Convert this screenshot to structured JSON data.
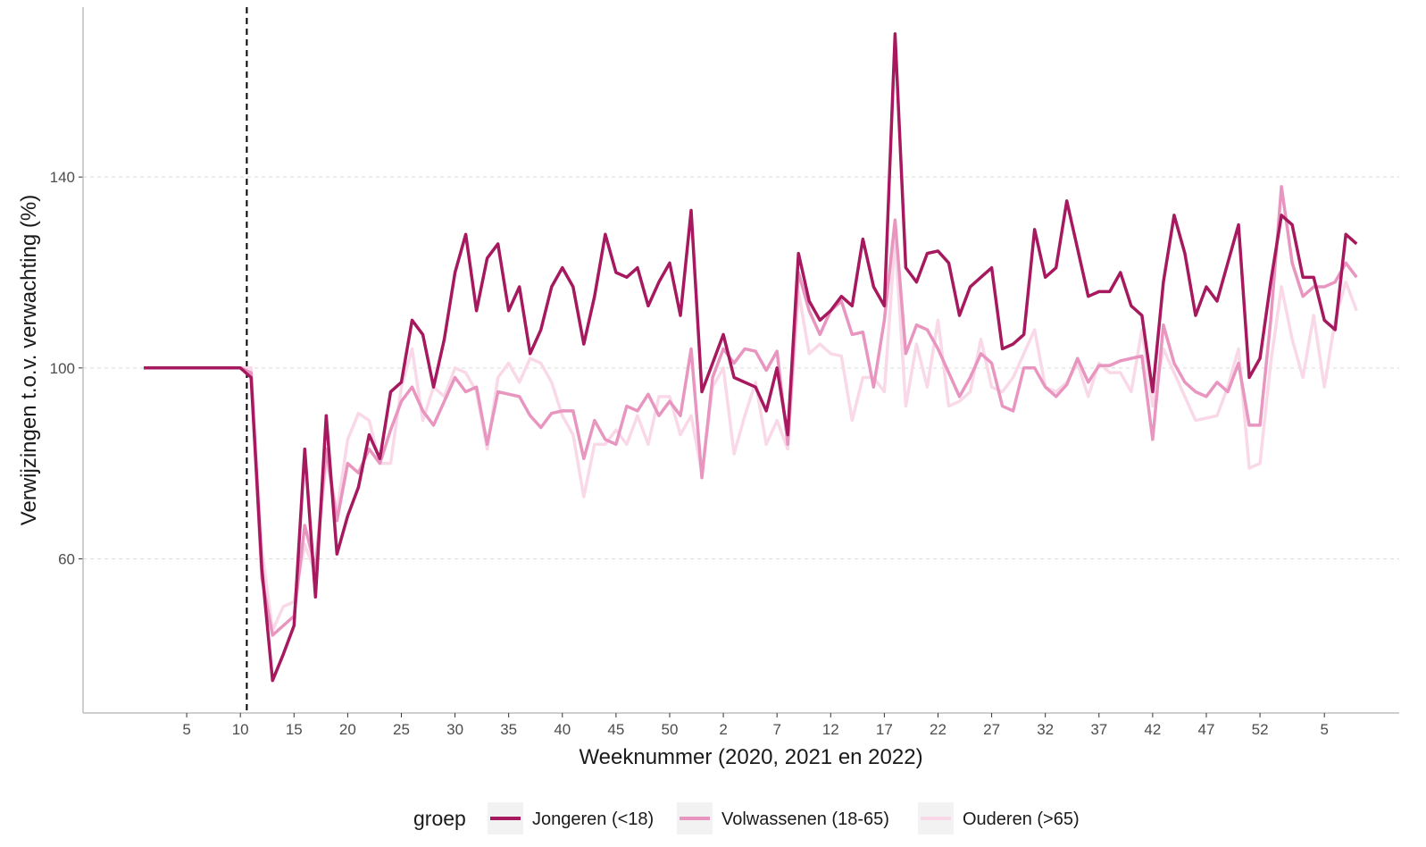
{
  "chart_data": {
    "type": "line",
    "x_label": "Weeknummer (2020, 2021 en 2022)",
    "y_label": "Verwijzingen t.o.v. verwachting (%)",
    "legend_title": "groep",
    "categories": [
      null,
      null,
      null,
      null,
      "5",
      null,
      null,
      null,
      null,
      "10",
      null,
      null,
      null,
      null,
      "15",
      null,
      null,
      null,
      null,
      "20",
      null,
      null,
      null,
      null,
      "25",
      null,
      null,
      null,
      null,
      "30",
      null,
      null,
      null,
      null,
      "35",
      null,
      null,
      null,
      null,
      "40",
      null,
      null,
      null,
      null,
      "45",
      null,
      null,
      null,
      null,
      "50",
      null,
      null,
      null,
      null,
      "2",
      null,
      null,
      null,
      null,
      "7",
      null,
      null,
      null,
      null,
      "12",
      null,
      null,
      null,
      null,
      "17",
      null,
      null,
      null,
      null,
      "22",
      null,
      null,
      null,
      null,
      "27",
      null,
      null,
      null,
      null,
      "32",
      null,
      null,
      null,
      null,
      "37",
      null,
      null,
      null,
      null,
      "42",
      null,
      null,
      null,
      null,
      "47",
      null,
      null,
      null,
      null,
      "52",
      null,
      null,
      null,
      null,
      null,
      "5",
      null,
      null,
      null
    ],
    "series": [
      {
        "name": "Jongeren (<18)",
        "color": "#a6195f",
        "values": [
          100,
          100,
          100,
          100,
          100,
          100,
          100,
          100,
          100,
          100,
          98,
          58,
          34.5,
          40,
          46,
          83,
          52,
          90,
          61,
          69,
          75,
          86,
          81,
          95,
          97,
          110,
          107,
          96,
          106,
          120,
          128,
          112,
          123,
          126,
          112,
          117,
          103,
          108,
          117,
          121,
          117,
          105,
          115,
          128,
          120,
          119,
          121,
          113,
          118,
          122,
          111,
          133,
          95,
          101,
          107,
          98,
          97,
          96,
          91,
          100,
          86,
          124,
          114,
          110,
          112,
          115,
          113,
          127,
          117,
          113,
          170,
          121,
          118,
          124,
          124.5,
          122,
          111,
          117,
          119,
          121,
          104,
          105,
          107,
          129,
          119,
          121,
          135,
          125,
          115,
          116,
          116,
          120,
          113,
          111,
          95,
          118,
          132,
          124,
          111,
          117,
          114,
          122,
          130,
          98,
          102,
          118,
          132,
          130,
          119,
          119,
          110,
          108,
          128,
          126
        ]
      },
      {
        "name": "Volwassenen (18-65)",
        "color": "#e895c0",
        "values": [
          100,
          100,
          100,
          100,
          100,
          100,
          100,
          100,
          100,
          100,
          99,
          56,
          44,
          46,
          48,
          67,
          58,
          83,
          68,
          80,
          78,
          83,
          80,
          87,
          93,
          96,
          91,
          88,
          93,
          98,
          95,
          96,
          84,
          95,
          94.5,
          94,
          90,
          87.5,
          90.5,
          91,
          91,
          81,
          89,
          85,
          84,
          92,
          91,
          94.5,
          90,
          93,
          90,
          104,
          77,
          98,
          104,
          101,
          104,
          103.5,
          99.5,
          103.5,
          84,
          120,
          112,
          107,
          112,
          114,
          107,
          107.5,
          96,
          110,
          131,
          103,
          109,
          108,
          104,
          99,
          94,
          98,
          103,
          101,
          92,
          91,
          100,
          100,
          96,
          94,
          96.5,
          102,
          97,
          100.5,
          100.5,
          101.5,
          102,
          102.5,
          85,
          109,
          101,
          97,
          95,
          94,
          97,
          95,
          101,
          88,
          88,
          110,
          138,
          122,
          115,
          117,
          117,
          118,
          122,
          119
        ]
      },
      {
        "name": "Ouderen (>65)",
        "color": "#f9d8e8",
        "values": [
          100,
          100,
          100,
          100,
          100,
          100,
          100,
          100,
          100,
          100,
          100,
          62,
          45,
          50,
          51,
          63,
          57,
          81,
          70,
          85,
          90.5,
          89,
          80,
          80,
          96,
          104,
          89,
          96,
          94,
          100,
          99,
          95,
          83,
          98,
          101,
          97,
          102,
          101,
          97,
          90,
          86,
          73,
          84,
          84,
          87,
          84,
          90,
          84,
          94,
          94,
          86,
          90,
          78,
          96,
          100,
          82,
          90,
          97,
          84,
          89,
          83,
          116,
          103,
          105,
          103,
          102.5,
          89,
          98,
          98,
          95,
          127,
          92,
          105,
          96,
          110,
          92,
          93,
          95,
          106,
          96,
          95,
          98,
          103,
          108,
          96,
          95,
          97,
          101,
          94,
          101,
          99,
          99,
          95,
          108,
          92,
          104,
          99,
          94,
          89,
          89.5,
          90,
          96,
          104,
          79,
          80,
          101,
          117,
          106,
          98,
          111,
          96,
          110,
          118,
          112
        ]
      }
    ],
    "reference_line": 9.6,
    "ylim": [
      27.7,
      175.6
    ],
    "yticks": [
      60,
      100,
      140
    ],
    "grid": true,
    "legend_position": "bottom"
  }
}
